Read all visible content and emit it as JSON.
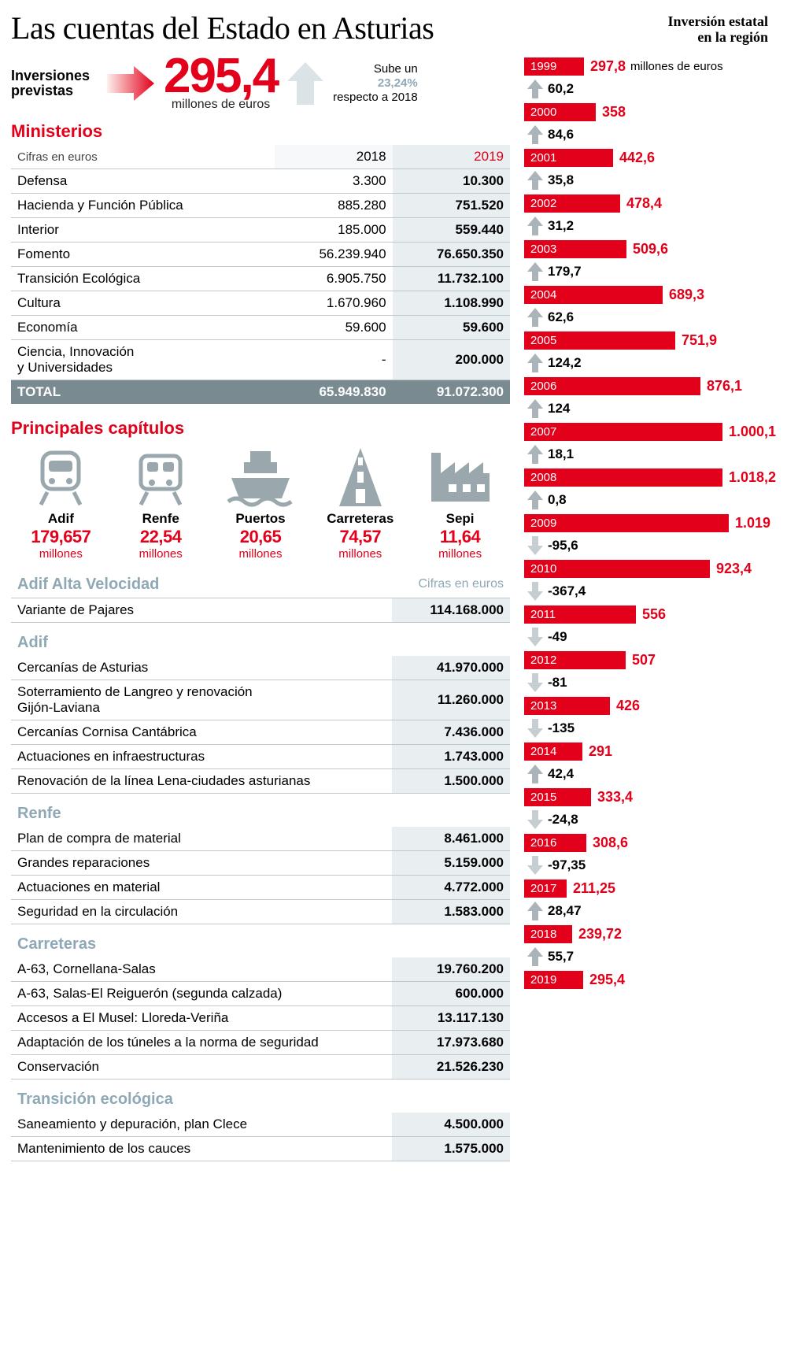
{
  "title": "Las cuentas del Estado en Asturias",
  "sidebar_title_l1": "Inversión estatal",
  "sidebar_title_l2": "en la región",
  "hero": {
    "label_l1": "Inversiones",
    "label_l2": "previstas",
    "number": "295,4",
    "unit": "millones de euros",
    "up_l1": "Sube un",
    "up_pct": "23,24%",
    "up_l3": "respecto a 2018"
  },
  "colors": {
    "red": "#e2001a",
    "gray": "#8ea9b5",
    "cell_bg": "#e9eef1",
    "total_bg": "#7a8a91",
    "border": "#bfc8cc",
    "arrow_up": "#aab4b9",
    "arrow_down": "#c7ced2"
  },
  "ministerios": {
    "heading": "Ministerios",
    "note": "Cifras en euros",
    "col_2018": "2018",
    "col_2019": "2019",
    "rows": [
      {
        "name": "Defensa",
        "v2018": "3.300",
        "v2019": "10.300"
      },
      {
        "name": "Hacienda y Función Pública",
        "v2018": "885.280",
        "v2019": "751.520"
      },
      {
        "name": "Interior",
        "v2018": "185.000",
        "v2019": "559.440"
      },
      {
        "name": "Fomento",
        "v2018": "56.239.940",
        "v2019": "76.650.350"
      },
      {
        "name": "Transición Ecológica",
        "v2018": "6.905.750",
        "v2019": "11.732.100"
      },
      {
        "name": "Cultura",
        "v2018": "1.670.960",
        "v2019": "1.108.990"
      },
      {
        "name": "Economía",
        "v2018": "59.600",
        "v2019": "59.600"
      },
      {
        "name": "Ciencia, Innovación\ny Universidades",
        "v2018": "-",
        "v2019": "200.000"
      }
    ],
    "total_label": "TOTAL",
    "total_2018": "65.949.830",
    "total_2019": "91.072.300"
  },
  "capitulos": {
    "heading": "Principales capítulos",
    "unit": "millones",
    "items": [
      {
        "name": "Adif",
        "value": "179,657",
        "icon": "train-front"
      },
      {
        "name": "Renfe",
        "value": "22,54",
        "icon": "train-side"
      },
      {
        "name": "Puertos",
        "value": "20,65",
        "icon": "ship"
      },
      {
        "name": "Carreteras",
        "value": "74,57",
        "icon": "road"
      },
      {
        "name": "Sepi",
        "value": "11,64",
        "icon": "factory"
      }
    ]
  },
  "detail_cifras_label": "Cifras en euros",
  "detail_sections": [
    {
      "title": "Adif Alta Velocidad",
      "rows": [
        {
          "name": "Variante de Pajares",
          "val": "114.168.000"
        }
      ]
    },
    {
      "title": "Adif",
      "rows": [
        {
          "name": "Cercanías de Asturias",
          "val": "41.970.000"
        },
        {
          "name": "Soterramiento de Langreo y renovación\nGijón-Laviana",
          "val": "11.260.000"
        },
        {
          "name": "Cercanías Cornisa Cantábrica",
          "val": "7.436.000"
        },
        {
          "name": "Actuaciones en infraestructuras",
          "val": "1.743.000"
        },
        {
          "name": "Renovación de la línea Lena-ciudades asturianas",
          "val": "1.500.000"
        }
      ]
    },
    {
      "title": "Renfe",
      "rows": [
        {
          "name": "Plan de compra de material",
          "val": "8.461.000"
        },
        {
          "name": "Grandes reparaciones",
          "val": "5.159.000"
        },
        {
          "name": "Actuaciones en material",
          "val": "4.772.000"
        },
        {
          "name": "Seguridad en la circulación",
          "val": "1.583.000"
        }
      ]
    },
    {
      "title": "Carreteras",
      "rows": [
        {
          "name": "A-63, Cornellana-Salas",
          "val": "19.760.200"
        },
        {
          "name": "A-63, Salas-El Reiguerón (segunda calzada)",
          "val": "600.000"
        },
        {
          "name": "Accesos a El Musel: Lloreda-Veriña",
          "val": "13.117.130"
        },
        {
          "name": "Adaptación de los túneles a la norma de seguridad",
          "val": "17.973.680"
        },
        {
          "name": "Conservación",
          "val": "21.526.230"
        }
      ]
    },
    {
      "title": "Transición ecológica",
      "rows": [
        {
          "name": "Saneamiento y depuración, plan Clece",
          "val": "4.500.000"
        },
        {
          "name": "Mantenimiento de los cauces",
          "val": "1.575.000"
        }
      ]
    }
  ],
  "timeline": {
    "first_unit": "millones de euros",
    "max_value": 1019,
    "bar_max_width": 260,
    "years": [
      {
        "year": "1999",
        "value": "297,8",
        "num": 297.8,
        "diff": "60,2",
        "dir": "up"
      },
      {
        "year": "2000",
        "value": "358",
        "num": 358,
        "diff": "84,6",
        "dir": "up"
      },
      {
        "year": "2001",
        "value": "442,6",
        "num": 442.6,
        "diff": "35,8",
        "dir": "up"
      },
      {
        "year": "2002",
        "value": "478,4",
        "num": 478.4,
        "diff": "31,2",
        "dir": "up"
      },
      {
        "year": "2003",
        "value": "509,6",
        "num": 509.6,
        "diff": "179,7",
        "dir": "up"
      },
      {
        "year": "2004",
        "value": "689,3",
        "num": 689.3,
        "diff": "62,6",
        "dir": "up"
      },
      {
        "year": "2005",
        "value": "751,9",
        "num": 751.9,
        "diff": "124,2",
        "dir": "up"
      },
      {
        "year": "2006",
        "value": "876,1",
        "num": 876.1,
        "diff": "124",
        "dir": "up"
      },
      {
        "year": "2007",
        "value": "1.000,1",
        "num": 1000.1,
        "diff": "18,1",
        "dir": "up"
      },
      {
        "year": "2008",
        "value": "1.018,2",
        "num": 1018.2,
        "diff": "0,8",
        "dir": "up"
      },
      {
        "year": "2009",
        "value": "1.019",
        "num": 1019,
        "diff": "-95,6",
        "dir": "down"
      },
      {
        "year": "2010",
        "value": "923,4",
        "num": 923.4,
        "diff": "-367,4",
        "dir": "down"
      },
      {
        "year": "2011",
        "value": "556",
        "num": 556,
        "diff": "-49",
        "dir": "down"
      },
      {
        "year": "2012",
        "value": "507",
        "num": 507,
        "diff": "-81",
        "dir": "down"
      },
      {
        "year": "2013",
        "value": "426",
        "num": 426,
        "diff": "-135",
        "dir": "down"
      },
      {
        "year": "2014",
        "value": "291",
        "num": 291,
        "diff": "42,4",
        "dir": "up"
      },
      {
        "year": "2015",
        "value": "333,4",
        "num": 333.4,
        "diff": "-24,8",
        "dir": "down"
      },
      {
        "year": "2016",
        "value": "308,6",
        "num": 308.6,
        "diff": "-97,35",
        "dir": "down"
      },
      {
        "year": "2017",
        "value": "211,25",
        "num": 211.25,
        "diff": "28,47",
        "dir": "up"
      },
      {
        "year": "2018",
        "value": "239,72",
        "num": 239.72,
        "diff": "55,7",
        "dir": "up"
      },
      {
        "year": "2019",
        "value": "295,4",
        "num": 295.4,
        "diff": null,
        "dir": null
      }
    ]
  }
}
